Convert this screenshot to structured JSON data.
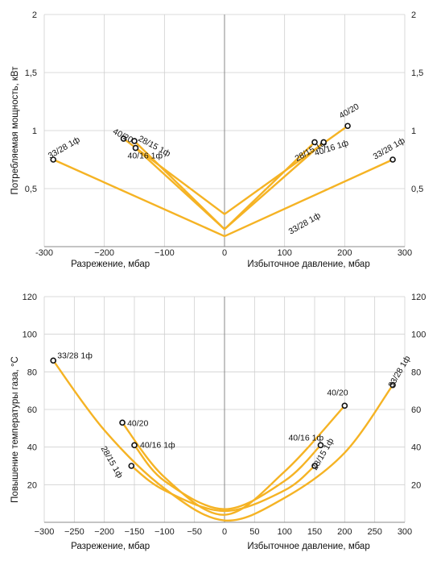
{
  "colors": {
    "curve": "#f5b324",
    "grid": "#cfcfcf",
    "point": "#111111"
  },
  "chart_data": [
    {
      "type": "line",
      "ylabel": "Потребляемая мощность, кВт",
      "xlabel_left": "Разрежение, мбар",
      "xlabel_right": "Избыточное давление, мбар",
      "xlim": [
        -300,
        300
      ],
      "ylim": [
        0,
        2
      ],
      "x_ticks": [
        -300,
        -200,
        -100,
        0,
        100,
        200,
        300
      ],
      "x_tick_labels": [
        "-300",
        "−200",
        "−100",
        "0",
        "100",
        "200",
        "300"
      ],
      "y_ticks": [
        0.5,
        1,
        1.5,
        2
      ],
      "y_tick_labels": [
        "0,5",
        "1",
        "1,5",
        "2"
      ],
      "grid": true,
      "series": [
        {
          "name": "33/28 1ф",
          "x": [
            -285,
            0,
            280
          ],
          "y": [
            0.75,
            0.09,
            0.75
          ]
        },
        {
          "name": "40/20",
          "x": [
            -168,
            0,
            205
          ],
          "y": [
            0.93,
            0.28,
            1.04
          ]
        },
        {
          "name": "28/15 1ф",
          "x": [
            -150,
            0,
            150
          ],
          "y": [
            0.91,
            0.15,
            0.9
          ]
        },
        {
          "name": "40/16 1ф",
          "x": [
            -148,
            0,
            165
          ],
          "y": [
            0.85,
            0.15,
            0.9
          ]
        }
      ],
      "annotations": [
        {
          "text": "33/28 1ф",
          "x": -285,
          "y": 0.75
        },
        {
          "text": "40/20",
          "x": -168,
          "y": 0.93
        },
        {
          "text": "28/15 1ф",
          "x": -150,
          "y": 0.91
        },
        {
          "text": "40/16 1ф",
          "x": -148,
          "y": 0.85
        },
        {
          "text": "28/15 1ф",
          "x": 150,
          "y": 0.9
        },
        {
          "text": "40/16 1ф",
          "x": 165,
          "y": 0.9
        },
        {
          "text": "40/20",
          "x": 205,
          "y": 1.04
        },
        {
          "text": "33/28 1ф",
          "x": 280,
          "y": 0.75
        },
        {
          "text": "33/28 1ф",
          "x": 110,
          "y": 0.09
        }
      ]
    },
    {
      "type": "line",
      "ylabel": "Повышение температуры газа, °С",
      "xlabel_left": "Разрежение, мбар",
      "xlabel_right": "Избыточное давление, мбар",
      "xlim": [
        -300,
        300
      ],
      "ylim": [
        0,
        120
      ],
      "x_ticks": [
        -300,
        -250,
        -200,
        -150,
        -100,
        -50,
        0,
        50,
        100,
        150,
        200,
        250,
        300
      ],
      "x_tick_labels": [
        "−300",
        "−250",
        "−200",
        "−150",
        "−100",
        "−50",
        "0",
        "50",
        "100",
        "150",
        "200",
        "250",
        "300"
      ],
      "y_ticks": [
        20,
        40,
        60,
        80,
        100,
        120
      ],
      "y_tick_labels": [
        "20",
        "40",
        "60",
        "80",
        "100",
        "120"
      ],
      "grid": true,
      "series": [
        {
          "name": "33/28 1ф",
          "x": [
            -285,
            -200,
            -100,
            0,
            100,
            200,
            280
          ],
          "y": [
            86,
            49,
            18,
            1,
            13,
            37,
            73
          ]
        },
        {
          "name": "40/20",
          "x": [
            -170,
            -100,
            0,
            100,
            200
          ],
          "y": [
            53,
            24,
            4,
            27,
            62
          ]
        },
        {
          "name": "40/16 1ф",
          "x": [
            -150,
            -100,
            0,
            100,
            160
          ],
          "y": [
            41,
            22,
            7,
            22,
            41
          ]
        },
        {
          "name": "28/15 1ф",
          "x": [
            -155,
            -100,
            0,
            100,
            150
          ],
          "y": [
            30,
            17,
            6,
            17,
            30
          ]
        }
      ],
      "annotations": [
        {
          "text": "33/28 1ф",
          "x": -285,
          "y": 86
        },
        {
          "text": "40/20",
          "x": -170,
          "y": 53
        },
        {
          "text": "40/16 1ф",
          "x": -150,
          "y": 41
        },
        {
          "text": "28/15 1ф",
          "x": -155,
          "y": 30
        },
        {
          "text": "40/16 1ф",
          "x": 160,
          "y": 41
        },
        {
          "text": "28/15 1ф",
          "x": 150,
          "y": 30
        },
        {
          "text": "40/20",
          "x": 200,
          "y": 62
        },
        {
          "text": "33/28 1ф",
          "x": 280,
          "y": 73
        }
      ]
    }
  ]
}
